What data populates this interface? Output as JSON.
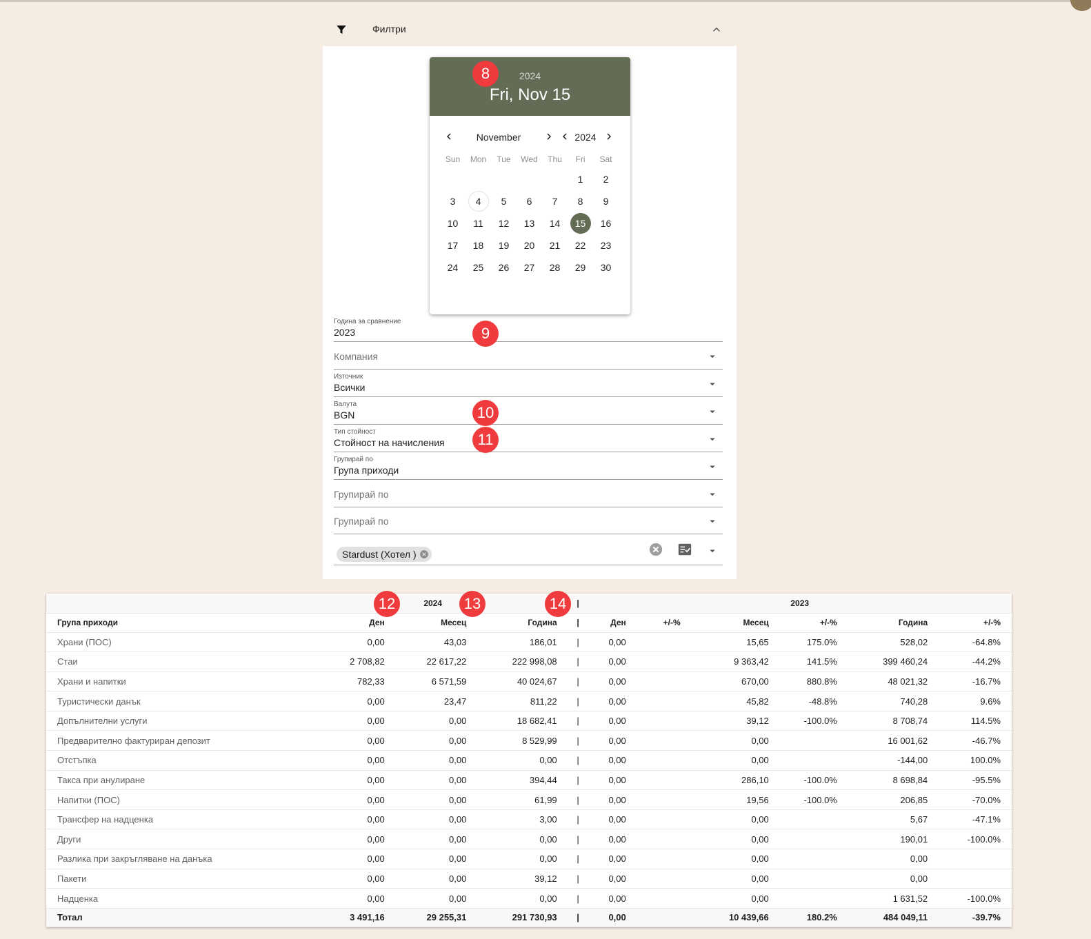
{
  "filter": {
    "title": "Филтри",
    "icon": "filter-icon",
    "collapse_icon": "chevron-up-icon"
  },
  "datepicker": {
    "year": "2024",
    "selected_label": "Fri, Nov 15",
    "month": "November",
    "nav_year": "2024",
    "days_of_week": [
      "Sun",
      "Mon",
      "Tue",
      "Wed",
      "Thu",
      "Fri",
      "Sat"
    ],
    "weeks": [
      [
        "",
        "",
        "",
        "",
        "",
        "1",
        "2"
      ],
      [
        "3",
        "4",
        "5",
        "6",
        "7",
        "8",
        "9"
      ],
      [
        "10",
        "11",
        "12",
        "13",
        "14",
        "15",
        "16"
      ],
      [
        "17",
        "18",
        "19",
        "20",
        "21",
        "22",
        "23"
      ],
      [
        "24",
        "25",
        "26",
        "27",
        "28",
        "29",
        "30"
      ]
    ],
    "today": "4",
    "selected": "15",
    "accent_color": "#636d56"
  },
  "fields": {
    "compare_year": {
      "label": "Година за сравнение",
      "value": "2023"
    },
    "company": {
      "placeholder": "Компания"
    },
    "source": {
      "label": "Източник",
      "value": "Всички"
    },
    "currency": {
      "label": "Валута",
      "value": "BGN"
    },
    "value_type": {
      "label": "Тип стойност",
      "value": "Стойност на начисления"
    },
    "group_by_1": {
      "label": "Групирай по",
      "value": "Група приходи"
    },
    "group_by_2": {
      "placeholder": "Групирай по"
    },
    "group_by_3": {
      "placeholder": "Групирай по"
    },
    "property": {
      "chip": "Stardust (Хотел )"
    }
  },
  "badges": [
    "8",
    "9",
    "10",
    "11",
    "12",
    "13",
    "14"
  ],
  "badge_color": "#ef3a3e",
  "table": {
    "group_header": {
      "current": "2024",
      "separator": "|",
      "compare": "2023"
    },
    "columns": [
      "Група приходи",
      "Ден",
      "Месец",
      "Година",
      "|",
      "Ден",
      "+/-%",
      "Месец",
      "+/-%",
      "Година",
      "+/-%"
    ],
    "rows": [
      [
        "Храни (ПОС)",
        "0,00",
        "43,03",
        "186,01",
        "|",
        "0,00",
        "",
        "15,65",
        "175.0%",
        "528,02",
        "-64.8%"
      ],
      [
        "Стаи",
        "2 708,82",
        "22 617,22",
        "222 998,08",
        "|",
        "0,00",
        "",
        "9 363,42",
        "141.5%",
        "399 460,24",
        "-44.2%"
      ],
      [
        "Храни и напитки",
        "782,33",
        "6 571,59",
        "40 024,67",
        "|",
        "0,00",
        "",
        "670,00",
        "880.8%",
        "48 021,32",
        "-16.7%"
      ],
      [
        "Туристически данък",
        "0,00",
        "23,47",
        "811,22",
        "|",
        "0,00",
        "",
        "45,82",
        "-48.8%",
        "740,28",
        "9.6%"
      ],
      [
        "Допълнителни услуги",
        "0,00",
        "0,00",
        "18 682,41",
        "|",
        "0,00",
        "",
        "39,12",
        "-100.0%",
        "8 708,74",
        "114.5%"
      ],
      [
        "Предварително фактуриран депозит",
        "0,00",
        "0,00",
        "8 529,99",
        "|",
        "0,00",
        "",
        "0,00",
        "",
        "16 001,62",
        "-46.7%"
      ],
      [
        "Отстъпка",
        "0,00",
        "0,00",
        "0,00",
        "|",
        "0,00",
        "",
        "0,00",
        "",
        "-144,00",
        "100.0%"
      ],
      [
        "Такса при анулиране",
        "0,00",
        "0,00",
        "394,44",
        "|",
        "0,00",
        "",
        "286,10",
        "-100.0%",
        "8 698,84",
        "-95.5%"
      ],
      [
        "Напитки (ПОС)",
        "0,00",
        "0,00",
        "61,99",
        "|",
        "0,00",
        "",
        "19,56",
        "-100.0%",
        "206,85",
        "-70.0%"
      ],
      [
        "Трансфер на надценка",
        "0,00",
        "0,00",
        "3,00",
        "|",
        "0,00",
        "",
        "0,00",
        "",
        "5,67",
        "-47.1%"
      ],
      [
        "Други",
        "0,00",
        "0,00",
        "0,00",
        "|",
        "0,00",
        "",
        "0,00",
        "",
        "190,01",
        "-100.0%"
      ],
      [
        "Разлика при закръгляване на данъка",
        "0,00",
        "0,00",
        "0,00",
        "|",
        "0,00",
        "",
        "0,00",
        "",
        "0,00",
        ""
      ],
      [
        "Пакети",
        "0,00",
        "0,00",
        "39,12",
        "|",
        "0,00",
        "",
        "0,00",
        "",
        "0,00",
        ""
      ],
      [
        "Надценка",
        "0,00",
        "0,00",
        "0,00",
        "|",
        "0,00",
        "",
        "0,00",
        "",
        "1 631,52",
        "-100.0%"
      ]
    ],
    "total": [
      "Тотал",
      "3 491,16",
      "29 255,31",
      "291 730,93",
      "|",
      "0,00",
      "",
      "10 439,66",
      "180.2%",
      "484 049,11",
      "-39.7%"
    ]
  }
}
